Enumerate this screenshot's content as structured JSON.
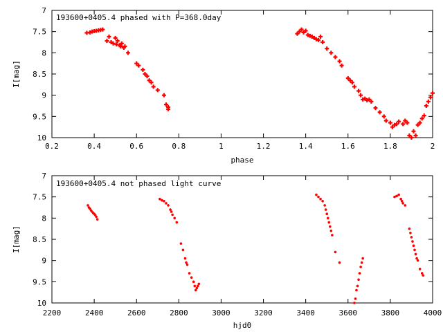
{
  "colors": {
    "points": "#ff0000",
    "axes": "#000000",
    "background": "#ffffff"
  },
  "chart_data": [
    {
      "type": "scatter",
      "title": "193600+0405.4 phased with P=368.0day",
      "xlabel": "phase",
      "ylabel": "I[mag]",
      "xlim": [
        0.2,
        2.0
      ],
      "ylim": [
        7,
        10
      ],
      "y_inverted": true,
      "grid": false,
      "legend": "none",
      "xticks": [
        0.2,
        0.4,
        0.6,
        0.8,
        1.0,
        1.2,
        1.4,
        1.6,
        1.8,
        2.0
      ],
      "xtick_labels": [
        "0.2",
        "0.4",
        "0.6",
        "0.8",
        "1",
        "1.2",
        "1.4",
        "1.6",
        "1.8",
        "2"
      ],
      "yticks": [
        7,
        7.5,
        8,
        8.5,
        9,
        9.5,
        10
      ],
      "ytick_labels": [
        "7",
        "7.5",
        "8",
        "8.5",
        "9",
        "9.5",
        "10"
      ],
      "marker": "plus",
      "series": [
        {
          "x": [
            0.365,
            0.38,
            0.39,
            0.4,
            0.41,
            0.42,
            0.43,
            0.44,
            0.46,
            0.47,
            0.48,
            0.49,
            0.5,
            0.505,
            0.51,
            0.52,
            0.525,
            0.53,
            0.54,
            0.545,
            0.56,
            0.6,
            0.61,
            0.63,
            0.64,
            0.65,
            0.66,
            0.67,
            0.68,
            0.7,
            0.73,
            0.74,
            0.75,
            0.75,
            1.36,
            1.37,
            1.38,
            1.39,
            1.4,
            1.41,
            1.42,
            1.43,
            1.44,
            1.45,
            1.46,
            1.47,
            1.48,
            1.5,
            1.52,
            1.54,
            1.56,
            1.57,
            1.6,
            1.61,
            1.62,
            1.63,
            1.65,
            1.66,
            1.67,
            1.68,
            1.69,
            1.7,
            1.71,
            1.73,
            1.75,
            1.77,
            1.78,
            1.8,
            1.81,
            1.82,
            1.83,
            1.84,
            1.86,
            1.87,
            1.88,
            1.89,
            1.9,
            1.91,
            1.92,
            1.93,
            1.94,
            1.95,
            1.96,
            1.97,
            1.98,
            1.99,
            2.0
          ],
          "y": [
            7.53,
            7.52,
            7.5,
            7.49,
            7.48,
            7.47,
            7.46,
            7.45,
            7.72,
            7.62,
            7.75,
            7.78,
            7.65,
            7.8,
            7.72,
            7.82,
            7.85,
            7.78,
            7.88,
            7.85,
            8.0,
            8.25,
            8.3,
            8.4,
            8.5,
            8.55,
            8.65,
            8.7,
            8.8,
            8.88,
            9.0,
            9.22,
            9.28,
            9.33,
            7.55,
            7.5,
            7.45,
            7.52,
            7.48,
            7.58,
            7.6,
            7.62,
            7.65,
            7.68,
            7.7,
            7.62,
            7.75,
            7.9,
            8.0,
            8.1,
            8.2,
            8.3,
            8.6,
            8.65,
            8.7,
            8.8,
            8.9,
            9.0,
            9.1,
            9.08,
            9.12,
            9.1,
            9.15,
            9.3,
            9.4,
            9.5,
            9.6,
            9.65,
            9.75,
            9.7,
            9.68,
            9.62,
            9.68,
            9.6,
            9.65,
            9.95,
            10.0,
            9.85,
            9.95,
            9.7,
            9.65,
            9.55,
            9.48,
            9.25,
            9.15,
            9.05,
            8.95
          ]
        }
      ]
    },
    {
      "type": "scatter",
      "title": "193600+0405.4 not phased light curve",
      "xlabel": "hjd0",
      "ylabel": "I[mag]",
      "xlim": [
        2200,
        4000
      ],
      "ylim": [
        7,
        10
      ],
      "y_inverted": true,
      "grid": false,
      "legend": "none",
      "xticks": [
        2200,
        2400,
        2600,
        2800,
        3000,
        3200,
        3400,
        3600,
        3800,
        4000
      ],
      "xtick_labels": [
        "2200",
        "2400",
        "2600",
        "2800",
        "3000",
        "3200",
        "3400",
        "3600",
        "3800",
        "4000"
      ],
      "yticks": [
        7,
        7.5,
        8,
        8.5,
        9,
        9.5,
        10
      ],
      "ytick_labels": [
        "7",
        "7.5",
        "8",
        "8.5",
        "9",
        "9.5",
        "10"
      ],
      "marker": "dot",
      "series": [
        {
          "x": [
            2370,
            2375,
            2380,
            2385,
            2390,
            2395,
            2400,
            2405,
            2410,
            2415,
            2710,
            2720,
            2730,
            2740,
            2750,
            2760,
            2765,
            2770,
            2780,
            2790,
            2810,
            2820,
            2830,
            2835,
            2840,
            2850,
            2860,
            2870,
            2875,
            2880,
            2885,
            2890,
            2895,
            3450,
            3460,
            3470,
            3480,
            3490,
            3495,
            3500,
            3505,
            3510,
            3515,
            3520,
            3525,
            3540,
            3560,
            3630,
            3635,
            3640,
            3645,
            3650,
            3655,
            3660,
            3665,
            3670,
            3820,
            3830,
            3840,
            3850,
            3855,
            3860,
            3870,
            3890,
            3895,
            3900,
            3905,
            3910,
            3915,
            3920,
            3925,
            3930,
            3940,
            3950,
            3955
          ],
          "y": [
            7.7,
            7.75,
            7.78,
            7.82,
            7.85,
            7.88,
            7.9,
            7.93,
            7.97,
            8.03,
            7.55,
            7.58,
            7.6,
            7.65,
            7.7,
            7.8,
            7.85,
            7.92,
            8.0,
            8.1,
            8.6,
            8.75,
            8.95,
            9.05,
            9.1,
            9.3,
            9.4,
            9.5,
            9.6,
            9.7,
            9.65,
            9.6,
            9.55,
            7.45,
            7.5,
            7.55,
            7.6,
            7.7,
            7.8,
            7.9,
            8.0,
            8.1,
            8.2,
            8.3,
            8.4,
            8.8,
            9.05,
            10.0,
            9.9,
            9.7,
            9.6,
            9.45,
            9.3,
            9.15,
            9.05,
            8.95,
            7.5,
            7.48,
            7.45,
            7.55,
            7.6,
            7.65,
            7.7,
            8.25,
            8.35,
            8.45,
            8.55,
            8.65,
            8.75,
            8.85,
            8.95,
            9.0,
            9.2,
            9.3,
            9.35
          ]
        }
      ]
    }
  ]
}
